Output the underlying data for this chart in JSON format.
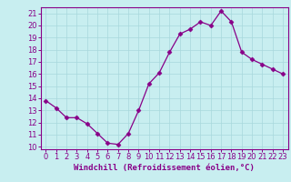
{
  "x": [
    0,
    1,
    2,
    3,
    4,
    5,
    6,
    7,
    8,
    9,
    10,
    11,
    12,
    13,
    14,
    15,
    16,
    17,
    18,
    19,
    20,
    21,
    22,
    23
  ],
  "y": [
    13.8,
    13.2,
    12.4,
    12.4,
    11.9,
    11.1,
    10.3,
    10.2,
    11.1,
    13.0,
    15.2,
    16.1,
    17.8,
    19.3,
    19.7,
    20.3,
    20.0,
    21.2,
    20.3,
    17.8,
    17.2,
    16.8,
    16.4,
    16.0
  ],
  "line_color": "#880088",
  "marker": "D",
  "marker_size": 2.5,
  "bg_color": "#c8eef0",
  "grid_color": "#a8d8dc",
  "xlabel": "Windchill (Refroidissement éolien,°C)",
  "xlabel_fontsize": 6.5,
  "tick_fontsize": 6.0,
  "ylim": [
    9.8,
    21.5
  ],
  "xlim": [
    -0.5,
    23.5
  ],
  "yticks": [
    10,
    11,
    12,
    13,
    14,
    15,
    16,
    17,
    18,
    19,
    20,
    21
  ],
  "xticks": [
    0,
    1,
    2,
    3,
    4,
    5,
    6,
    7,
    8,
    9,
    10,
    11,
    12,
    13,
    14,
    15,
    16,
    17,
    18,
    19,
    20,
    21,
    22,
    23
  ]
}
